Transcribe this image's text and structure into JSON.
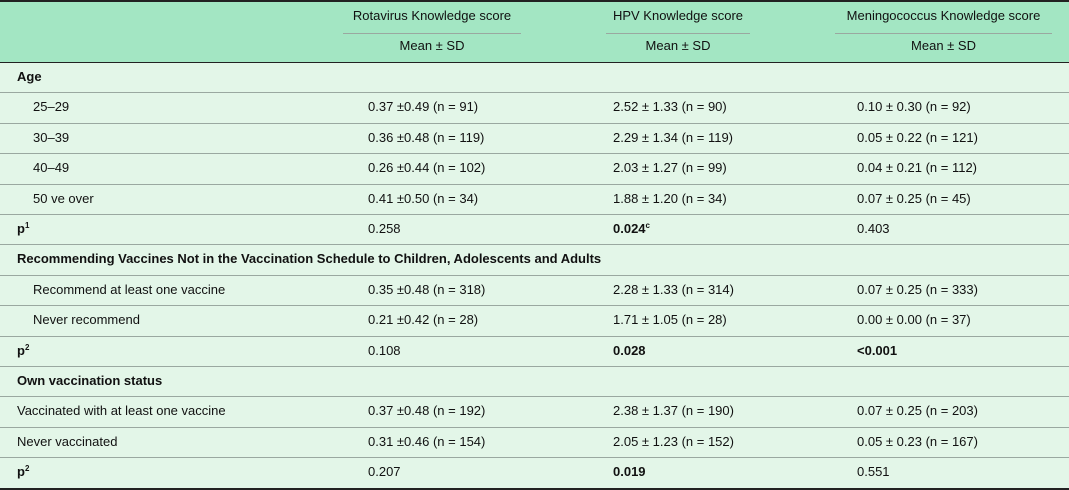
{
  "header": {
    "columns": [
      "Rotavirus Knowledge score",
      "HPV Knowledge score",
      "Meningococcus Knowledge score"
    ],
    "subheader": [
      "Mean ± SD",
      "Mean ± SD",
      "Mean ± SD"
    ]
  },
  "groups": [
    {
      "title": "Age",
      "rows": [
        {
          "label": "25–29",
          "cells": [
            "0.37 ±0.49 (n = 91)",
            "2.52 ± 1.33 (n = 90)",
            "0.10 ± 0.30 (n = 92)"
          ]
        },
        {
          "label": "30–39",
          "cells": [
            "0.36 ±0.48 (n = 119)",
            "2.29 ± 1.34 (n = 119)",
            "0.05 ± 0.22 (n = 121)"
          ]
        },
        {
          "label": "40–49",
          "cells": [
            "0.26 ±0.44 (n = 102)",
            "2.03 ± 1.27 (n = 99)",
            "0.04 ± 0.21 (n = 112)"
          ]
        },
        {
          "label": "50 ve over",
          "cells": [
            "0.41 ±0.50 (n = 34)",
            "1.88 ± 1.20 (n = 34)",
            "0.07 ± 0.25 (n = 45)"
          ]
        }
      ],
      "p": {
        "label": "p",
        "sup": "1",
        "cells": [
          {
            "text": "0.258"
          },
          {
            "text": "0.024",
            "sup": "c"
          },
          {
            "text": "0.403"
          }
        ]
      }
    },
    {
      "title": "Recommending Vaccines Not in the Vaccination Schedule to Children, Adolescents and Adults",
      "rows": [
        {
          "label": "Recommend at least one vaccine",
          "cells": [
            "0.35 ±0.48 (n = 318)",
            "2.28 ± 1.33 (n = 314)",
            "0.07 ± 0.25 (n = 333)"
          ]
        },
        {
          "label": "Never recommend",
          "cells": [
            "0.21 ±0.42 (n = 28)",
            "1.71 ± 1.05 (n = 28)",
            "0.00 ± 0.00 (n = 37)"
          ]
        }
      ],
      "p": {
        "label": "p",
        "sup": "2",
        "cells": [
          {
            "text": "0.108"
          },
          {
            "text": "0.028"
          },
          {
            "text": "<0.001"
          }
        ]
      }
    },
    {
      "title": "Own vaccination status",
      "rows": [
        {
          "label": "Vaccinated with at least one vaccine",
          "cells": [
            "0.37 ±0.48 (n = 192)",
            "2.38 ± 1.37 (n = 190)",
            "0.07 ± 0.25 (n = 203)"
          ]
        },
        {
          "label": "Never vaccinated",
          "cells": [
            "0.31 ±0.46 (n = 154)",
            "2.05 ± 1.23 (n = 152)",
            "0.05 ± 0.23 (n = 167)"
          ]
        }
      ],
      "p": {
        "label": "p",
        "sup": "2",
        "cells": [
          {
            "text": "0.207"
          },
          {
            "text": "0.019"
          },
          {
            "text": "0.551"
          }
        ]
      }
    }
  ]
}
